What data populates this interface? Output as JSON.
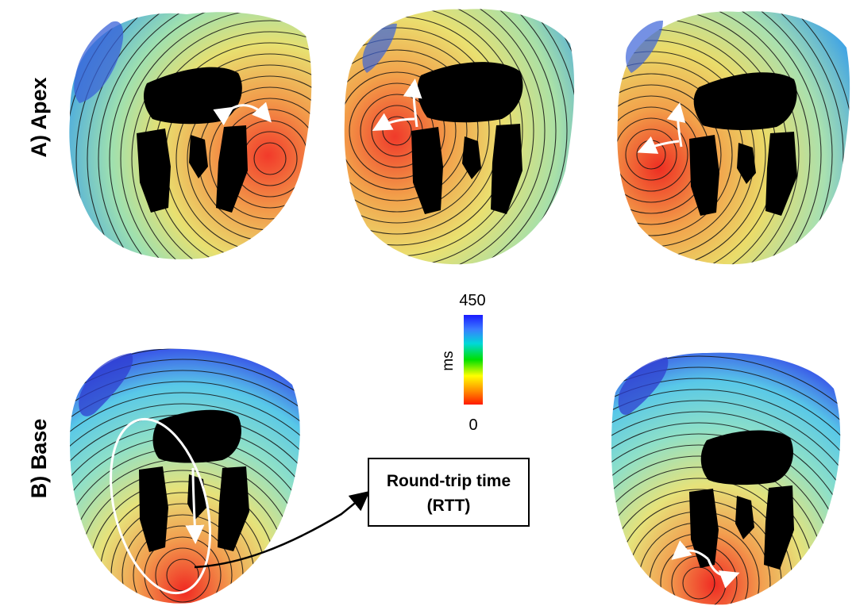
{
  "rows": {
    "apex_label": "A) Apex",
    "base_label": "B) Base"
  },
  "colorbar": {
    "max_label": "450",
    "min_label": "0",
    "unit": "ms",
    "range": [
      0,
      450
    ],
    "colors": [
      "#ff1a00",
      "#ff8c00",
      "#ffff00",
      "#00e000",
      "#00d8d8",
      "#3a7cff",
      "#1a1aff"
    ]
  },
  "callout": {
    "line1": "Round-trip time",
    "line2": "(RTT)"
  },
  "icons": {
    "heart": "heart-activation-map-icon",
    "arrow": "white-arrow-icon"
  }
}
